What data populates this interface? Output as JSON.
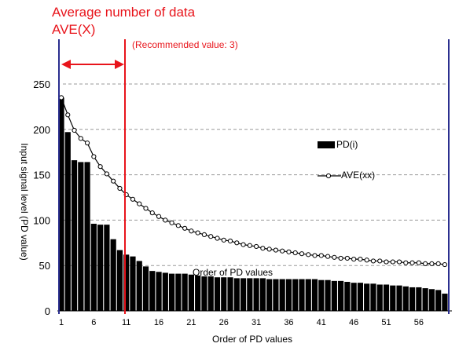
{
  "annotations": {
    "title_line1": "Average number of data",
    "title_line2": "AVE(X)",
    "recommended": "(Recommended value: 3)",
    "in_plot_label": "Order of PD values"
  },
  "chart_data": {
    "type": "bar",
    "xlabel": "Order of PD values",
    "ylabel": "Input signal level (PD value)",
    "ylim": [
      0,
      250
    ],
    "yticks": [
      0,
      50,
      100,
      150,
      200,
      250
    ],
    "xticks": [
      1,
      6,
      11,
      16,
      21,
      26,
      31,
      36,
      41,
      46,
      51,
      56
    ],
    "grid": "horizontal dashed",
    "legend_position": "right",
    "series": [
      {
        "name": "PD(i)",
        "type": "bar",
        "x": [
          1,
          2,
          3,
          4,
          5,
          6,
          7,
          8,
          9,
          10,
          11,
          12,
          13,
          14,
          15,
          16,
          17,
          18,
          19,
          20,
          21,
          22,
          23,
          24,
          25,
          26,
          27,
          28,
          29,
          30,
          31,
          32,
          33,
          34,
          35,
          36,
          37,
          38,
          39,
          40,
          41,
          42,
          43,
          44,
          45,
          46,
          47,
          48,
          49,
          50,
          51,
          52,
          53,
          54,
          55,
          56,
          57,
          58,
          59,
          60
        ],
        "values": [
          235,
          197,
          166,
          164,
          164,
          96,
          95,
          95,
          79,
          67,
          62,
          60,
          55,
          49,
          44,
          43,
          42,
          41,
          41,
          41,
          40,
          39,
          38,
          38,
          37,
          37,
          37,
          36,
          36,
          36,
          36,
          36,
          35,
          35,
          35,
          35,
          35,
          35,
          35,
          35,
          34,
          34,
          33,
          33,
          32,
          31,
          31,
          30,
          30,
          29,
          29,
          28,
          28,
          27,
          26,
          26,
          25,
          24,
          23,
          19
        ]
      },
      {
        "name": "AVE(xx)",
        "type": "line",
        "x": [
          1,
          2,
          3,
          4,
          5,
          6,
          7,
          8,
          9,
          10,
          11,
          12,
          13,
          14,
          15,
          16,
          17,
          18,
          19,
          20,
          21,
          22,
          23,
          24,
          25,
          26,
          27,
          28,
          29,
          30,
          31,
          32,
          33,
          34,
          35,
          36,
          37,
          38,
          39,
          40,
          41,
          42,
          43,
          44,
          45,
          46,
          47,
          48,
          49,
          50,
          51,
          52,
          53,
          54,
          55,
          56,
          57,
          58,
          59,
          60
        ],
        "values": [
          235,
          216,
          199,
          190,
          185,
          170,
          159,
          151,
          143,
          135,
          128,
          123,
          118,
          113,
          108,
          104,
          100,
          97,
          94,
          91,
          88,
          86,
          84,
          82,
          80,
          78,
          77,
          75,
          73,
          72,
          71,
          69,
          68,
          67,
          66,
          65,
          64,
          63,
          62,
          61,
          61,
          60,
          59,
          58,
          58,
          57,
          57,
          56,
          55,
          55,
          54,
          54,
          54,
          53,
          53,
          53,
          52,
          52,
          52,
          51
        ]
      }
    ],
    "colors": {
      "bars": "#000000",
      "line": "#000000",
      "grid": "#999999",
      "blue_lines": "#2b2f8f",
      "red": "#e8141b"
    }
  }
}
